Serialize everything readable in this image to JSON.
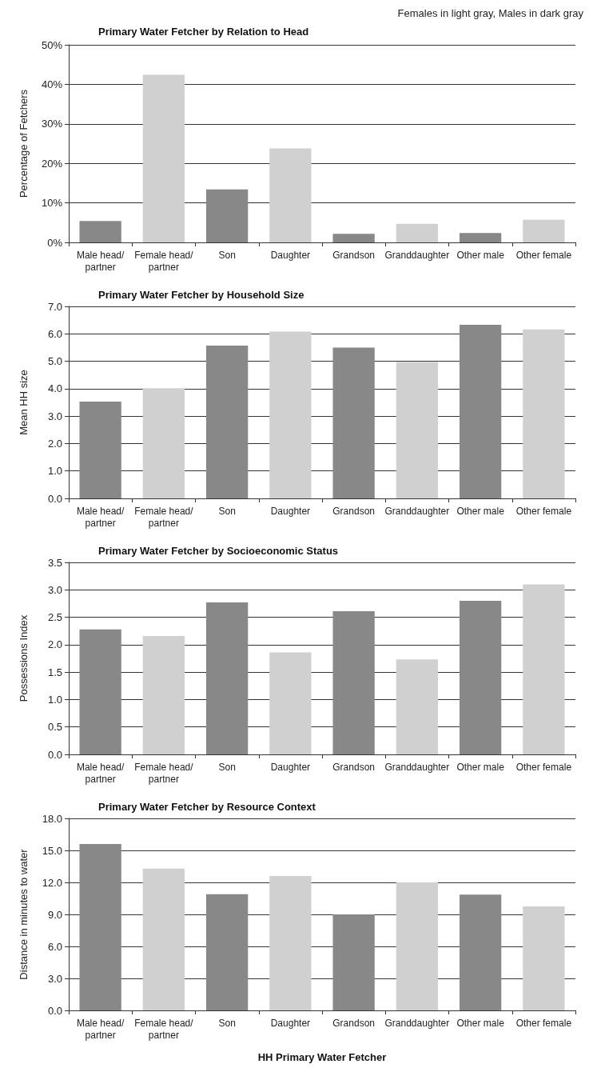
{
  "chart_data": [
    {
      "type": "bar",
      "title": "Primary Water Fetcher by Relation to Head",
      "ylabel": "Percentage of Fetchers",
      "annotations": [
        "Females in light gray, Males in dark gray"
      ],
      "categories": [
        "Male head/partner",
        "Female head/partner",
        "Son",
        "Daughter",
        "Grandson",
        "Granddaughter",
        "Other male",
        "Other female"
      ],
      "values": [
        5.4,
        42.4,
        13.4,
        23.8,
        2.2,
        4.7,
        2.4,
        5.7
      ],
      "colors": [
        "#888888",
        "#d0d0d0",
        "#888888",
        "#d0d0d0",
        "#888888",
        "#d0d0d0",
        "#888888",
        "#d0d0d0"
      ],
      "ylim": [
        0,
        50
      ],
      "yticks": [
        {
          "value": 0,
          "label": "0%"
        },
        {
          "value": 10,
          "label": "10%"
        },
        {
          "value": 20,
          "label": "20%"
        },
        {
          "value": 30,
          "label": "30%"
        },
        {
          "value": 40,
          "label": "40%"
        },
        {
          "value": 50,
          "label": "50%"
        }
      ],
      "grid": "y"
    },
    {
      "type": "bar",
      "title": "Primary Water Fetcher by Household Size",
      "ylabel": "Mean HH size",
      "categories": [
        "Male head/partner",
        "Female head/partner",
        "Son",
        "Daughter",
        "Grandson",
        "Granddaughter",
        "Other male",
        "Other female"
      ],
      "values": [
        3.53,
        4.02,
        5.57,
        6.08,
        5.5,
        4.97,
        6.33,
        6.16
      ],
      "colors": [
        "#888888",
        "#d0d0d0",
        "#888888",
        "#d0d0d0",
        "#888888",
        "#d0d0d0",
        "#888888",
        "#d0d0d0"
      ],
      "ylim": [
        0,
        7
      ],
      "yticks": [
        {
          "value": 0,
          "label": "0.0"
        },
        {
          "value": 1,
          "label": "1.0"
        },
        {
          "value": 2,
          "label": "2.0"
        },
        {
          "value": 3,
          "label": "3.0"
        },
        {
          "value": 4,
          "label": "4.0"
        },
        {
          "value": 5,
          "label": "5.0"
        },
        {
          "value": 6,
          "label": "6.0"
        },
        {
          "value": 7,
          "label": "7.0"
        }
      ],
      "grid": "y"
    },
    {
      "type": "bar",
      "title": "Primary Water Fetcher by Socioeconomic Status",
      "ylabel": "Possessions Index",
      "categories": [
        "Male head/partner",
        "Female head/partner",
        "Son",
        "Daughter",
        "Grandson",
        "Granddaughter",
        "Other male",
        "Other female"
      ],
      "values": [
        2.28,
        2.16,
        2.77,
        1.86,
        2.61,
        1.73,
        2.8,
        3.1
      ],
      "colors": [
        "#888888",
        "#d0d0d0",
        "#888888",
        "#d0d0d0",
        "#888888",
        "#d0d0d0",
        "#888888",
        "#d0d0d0"
      ],
      "ylim": [
        0,
        3.5
      ],
      "yticks": [
        {
          "value": 0,
          "label": "0.0"
        },
        {
          "value": 0.5,
          "label": "0.5"
        },
        {
          "value": 1,
          "label": "1.0"
        },
        {
          "value": 1.5,
          "label": "1.5"
        },
        {
          "value": 2,
          "label": "2.0"
        },
        {
          "value": 2.5,
          "label": "2.5"
        },
        {
          "value": 3,
          "label": "3.0"
        },
        {
          "value": 3.5,
          "label": "3.5"
        }
      ],
      "grid": "y"
    },
    {
      "type": "bar",
      "title": "Primary Water Fetcher by Resource Context",
      "ylabel": "Distance in minutes to water",
      "xlabel": "HH Primary Water Fetcher",
      "categories": [
        "Male head/partner",
        "Female head/partner",
        "Son",
        "Daughter",
        "Grandson",
        "Granddaughter",
        "Other male",
        "Other female"
      ],
      "values": [
        15.6,
        13.3,
        10.9,
        12.6,
        9.0,
        12.0,
        10.85,
        9.75
      ],
      "colors": [
        "#888888",
        "#d0d0d0",
        "#888888",
        "#d0d0d0",
        "#888888",
        "#d0d0d0",
        "#888888",
        "#d0d0d0"
      ],
      "ylim": [
        0,
        18
      ],
      "yticks": [
        {
          "value": 0,
          "label": "0.0"
        },
        {
          "value": 3,
          "label": "3.0"
        },
        {
          "value": 6,
          "label": "6.0"
        },
        {
          "value": 9,
          "label": "9.0"
        },
        {
          "value": 12,
          "label": "12.0"
        },
        {
          "value": 15,
          "label": "15.0"
        },
        {
          "value": 18,
          "label": "18.0"
        }
      ],
      "grid": "y"
    }
  ]
}
